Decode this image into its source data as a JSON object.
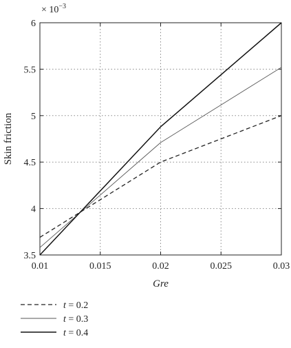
{
  "chart_data": {
    "type": "line",
    "xlabel": "Gre",
    "ylabel": "Skin friction",
    "y_multiplier": "× 10",
    "y_multiplier_exp": "−3",
    "xlim": [
      0.01,
      0.03
    ],
    "ylim": [
      3.5,
      6
    ],
    "x_ticks": [
      0.01,
      0.015,
      0.02,
      0.025,
      0.03
    ],
    "x_tick_labels": [
      "0.01",
      "0.015",
      "0.02",
      "0.025",
      "0.03"
    ],
    "y_ticks": [
      3.5,
      4,
      4.5,
      5,
      5.5,
      6
    ],
    "y_tick_labels": [
      "3.5",
      "4",
      "4.5",
      "5",
      "5.5",
      "6"
    ],
    "grid": true,
    "legend_position": "below",
    "series": [
      {
        "name_prefix": "t",
        "name_suffix": " = 0.2",
        "style": "dashed",
        "color": "#222222",
        "x": [
          0.01,
          0.02,
          0.03
        ],
        "y": [
          3.69,
          4.5,
          5.0
        ]
      },
      {
        "name_prefix": "t",
        "name_suffix": " = 0.3",
        "style": "thin",
        "color": "#555555",
        "x": [
          0.01,
          0.02,
          0.03
        ],
        "y": [
          3.58,
          4.71,
          5.52
        ]
      },
      {
        "name_prefix": "t",
        "name_suffix": " = 0.4",
        "style": "solid",
        "color": "#111111",
        "x": [
          0.01,
          0.02,
          0.03
        ],
        "y": [
          3.5,
          4.88,
          6.0
        ]
      }
    ]
  }
}
